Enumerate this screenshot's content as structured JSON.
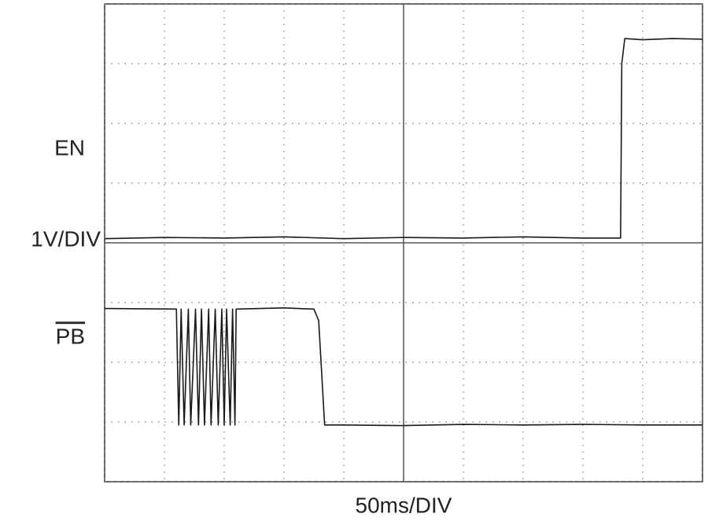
{
  "chart_data": {
    "type": "line",
    "x_label": "50ms/DIV",
    "y_label": "1V/DIV",
    "xlim": [
      0,
      10
    ],
    "ylim": [
      0,
      8
    ],
    "xticks": [
      0,
      1,
      2,
      3,
      4,
      5,
      6,
      7,
      8,
      9,
      10
    ],
    "yticks": [
      0,
      1,
      2,
      3,
      4,
      5,
      6,
      7,
      8
    ],
    "grid": true,
    "series": [
      {
        "name": "EN",
        "color": "#1a1a1a",
        "x": [
          0,
          1,
          2,
          3,
          4,
          5,
          6,
          7,
          8,
          8.63,
          8.65,
          8.7,
          9,
          9.5,
          10
        ],
        "values": [
          4.07,
          4.09,
          4.08,
          4.1,
          4.07,
          4.09,
          4.08,
          4.1,
          4.08,
          4.08,
          7.0,
          7.42,
          7.4,
          7.42,
          7.41
        ]
      },
      {
        "name": "PB",
        "color": "#1a1a1a",
        "x": [
          0,
          1.2,
          1.24,
          1.28,
          1.33,
          1.4,
          1.44,
          1.52,
          1.57,
          1.62,
          1.67,
          1.74,
          1.78,
          1.85,
          1.9,
          1.96,
          2.0,
          2.04,
          2.1,
          2.14,
          2.18,
          2.2,
          3.0,
          3.5,
          3.58,
          3.68,
          4,
          5,
          6,
          7,
          8,
          9,
          10
        ],
        "values": [
          2.9,
          2.89,
          0.95,
          2.89,
          0.95,
          2.89,
          0.95,
          2.89,
          0.95,
          2.89,
          0.95,
          2.89,
          0.95,
          2.89,
          0.95,
          2.89,
          0.95,
          2.89,
          0.95,
          2.89,
          0.95,
          2.89,
          2.91,
          2.89,
          2.7,
          0.95,
          0.95,
          0.94,
          0.96,
          0.95,
          0.96,
          0.95,
          0.95
        ]
      }
    ]
  }
}
